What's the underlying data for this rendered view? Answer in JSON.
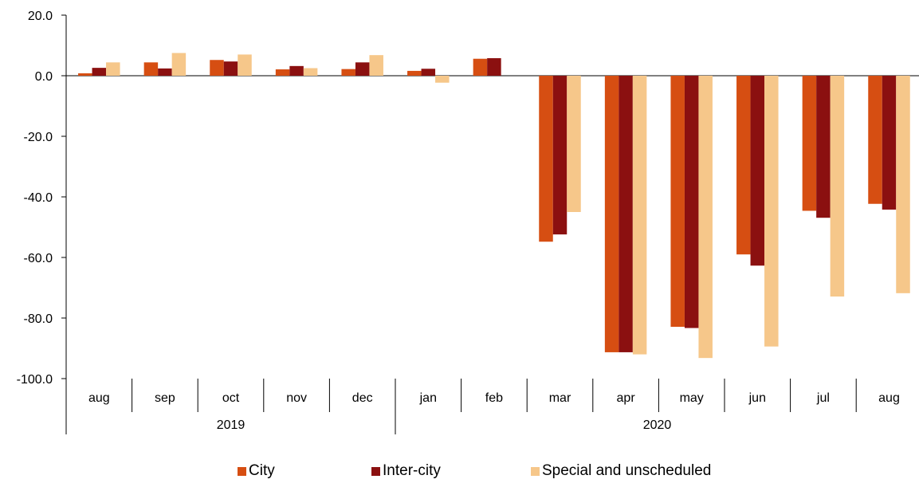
{
  "chart_data": {
    "type": "bar",
    "categories": [
      "aug",
      "sep",
      "oct",
      "nov",
      "dec",
      "jan",
      "feb",
      "mar",
      "apr",
      "may",
      "jun",
      "jul",
      "aug"
    ],
    "groups": [
      {
        "label": "2019",
        "span": 5
      },
      {
        "label": "2020",
        "span": 8
      }
    ],
    "series": [
      {
        "name": "City",
        "color": "#d64e12",
        "values": [
          0.8,
          4.4,
          5.2,
          2.1,
          2.2,
          1.6,
          5.6,
          -54.8,
          -91.3,
          -82.9,
          -59.0,
          -44.6,
          -42.3
        ]
      },
      {
        "name": "Inter-city",
        "color": "#8b1010",
        "values": [
          2.6,
          2.4,
          4.7,
          3.2,
          4.4,
          2.3,
          5.8,
          -52.4,
          -91.3,
          -83.3,
          -62.7,
          -46.9,
          -44.2
        ]
      },
      {
        "name": "Special and unscheduled",
        "color": "#f6c78a",
        "values": [
          4.4,
          7.5,
          7.0,
          2.5,
          6.8,
          -2.3,
          0,
          -45.0,
          -92.0,
          -93.2,
          -89.4,
          -72.9,
          -71.8
        ]
      }
    ],
    "yticks": [
      "20.0",
      "0.0",
      "-20.0",
      "-40.0",
      "-60.0",
      "-80.0",
      "-100.0"
    ],
    "ylim": [
      -100,
      20
    ],
    "title": "",
    "xlabel": "",
    "ylabel": "",
    "legend_position": "bottom"
  }
}
